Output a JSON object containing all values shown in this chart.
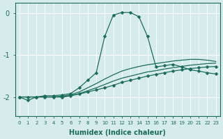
{
  "bg_color": "#d6ecec",
  "grid_color": "#ffffff",
  "line_color": "#1a6b5a",
  "xlabel": "Humidex (Indice chaleur)",
  "yticks": [
    0,
    -1,
    -2
  ],
  "xticks": [
    0,
    1,
    2,
    3,
    4,
    5,
    6,
    7,
    8,
    9,
    10,
    11,
    12,
    13,
    14,
    15,
    16,
    17,
    18,
    19,
    20,
    21,
    22,
    23
  ],
  "xlim": [
    -0.5,
    23.5
  ],
  "ylim": [
    -2.45,
    0.25
  ],
  "lines": [
    {
      "x": [
        0,
        1,
        2,
        3,
        4,
        5,
        6,
        7,
        8,
        9,
        10,
        11,
        12,
        13,
        14,
        15,
        16,
        17,
        18,
        19,
        20,
        21,
        22,
        23
      ],
      "y": [
        -2.0,
        -2.08,
        -2.0,
        -2.0,
        -2.0,
        -2.0,
        -1.97,
        -1.93,
        -1.88,
        -1.83,
        -1.78,
        -1.72,
        -1.65,
        -1.6,
        -1.55,
        -1.5,
        -1.46,
        -1.42,
        -1.38,
        -1.35,
        -1.32,
        -1.3,
        -1.28,
        -1.27
      ],
      "marker": true,
      "ms": 2.5
    },
    {
      "x": [
        0,
        1,
        2,
        3,
        4,
        5,
        6,
        7,
        8,
        9,
        10,
        11,
        12,
        13,
        14,
        15,
        16,
        17,
        18,
        19,
        20,
        21,
        22,
        23
      ],
      "y": [
        -2.0,
        -2.0,
        -2.0,
        -2.0,
        -2.0,
        -2.0,
        -1.97,
        -1.92,
        -1.85,
        -1.78,
        -1.7,
        -1.62,
        -1.55,
        -1.5,
        -1.45,
        -1.4,
        -1.37,
        -1.33,
        -1.3,
        -1.27,
        -1.24,
        -1.22,
        -1.2,
        -1.19
      ],
      "marker": false,
      "ms": null
    },
    {
      "x": [
        0,
        1,
        2,
        3,
        4,
        5,
        6,
        7,
        8,
        9,
        10,
        11,
        12,
        13,
        14,
        15,
        16,
        17,
        18,
        19,
        20,
        21,
        22,
        23
      ],
      "y": [
        -2.0,
        -2.0,
        -2.0,
        -2.0,
        -2.0,
        -1.98,
        -1.95,
        -1.88,
        -1.78,
        -1.68,
        -1.57,
        -1.47,
        -1.38,
        -1.32,
        -1.27,
        -1.23,
        -1.2,
        -1.17,
        -1.14,
        -1.12,
        -1.1,
        -1.1,
        -1.12,
        -1.15
      ],
      "marker": false,
      "ms": null
    },
    {
      "x": [
        0,
        1,
        2,
        3,
        4,
        5,
        6,
        7,
        8,
        9,
        10,
        11,
        12,
        13,
        14,
        15,
        16,
        17,
        18,
        19,
        20,
        21,
        22,
        23
      ],
      "y": [
        -2.0,
        -2.0,
        -2.0,
        -1.97,
        -1.97,
        -1.95,
        -1.92,
        -1.78,
        -1.6,
        -1.42,
        -0.55,
        -0.04,
        0.02,
        0.02,
        -0.08,
        -0.55,
        -1.28,
        -1.25,
        -1.22,
        -1.28,
        -1.35,
        -1.38,
        -1.42,
        -1.45
      ],
      "marker": true,
      "ms": 2.5
    }
  ]
}
